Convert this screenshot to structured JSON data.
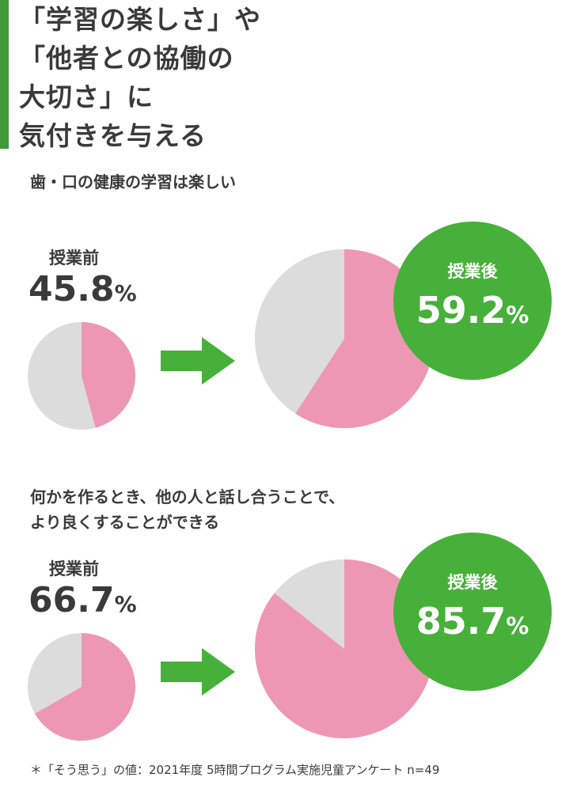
{
  "headline": {
    "lines": [
      "「学習の楽しさ」や",
      "「他者との協働の",
      "大切さ」に",
      "気付きを与える"
    ]
  },
  "colors": {
    "accent_green": "#3f9a3a",
    "badge_green": "#47b03a",
    "pie_pink": "#ee97b5",
    "pie_gray": "#dcdcdc",
    "arrow_green": "#47b03a"
  },
  "chart_data": [
    {
      "type": "pie",
      "title": "歯・口の健康の学習は楽しい",
      "before": {
        "label": "授業前",
        "value": 45.8,
        "value_text": "45.8",
        "unit": "%"
      },
      "after": {
        "label": "授業後",
        "value": 59.2,
        "value_text": "59.2",
        "unit": "%"
      }
    },
    {
      "type": "pie",
      "title": "何かを作るとき、他の人と話し合うことで、より良くすることができる",
      "title_lines": [
        "何かを作るとき、他の人と話し合うことで、",
        "より良くすることができる"
      ],
      "before": {
        "label": "授業前",
        "value": 66.7,
        "value_text": "66.7",
        "unit": "%"
      },
      "after": {
        "label": "授業後",
        "value": 85.7,
        "value_text": "85.7",
        "unit": "%"
      }
    }
  ],
  "footnote": "＊「そう思う」の値：2021年度 5時間プログラム実施児童アンケート n=49"
}
